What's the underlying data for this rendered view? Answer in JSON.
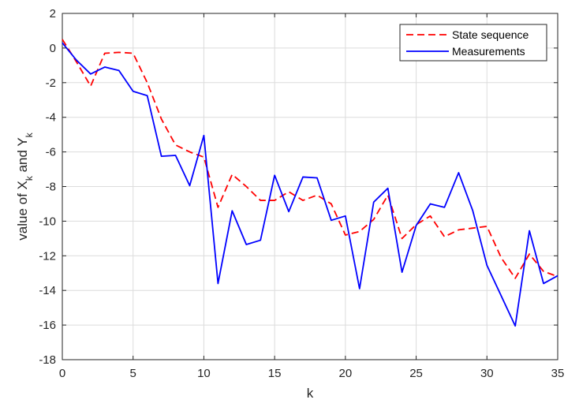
{
  "chart_data": {
    "type": "line",
    "title": "",
    "xlabel": "k",
    "ylabel": {
      "parts": [
        {
          "text": "value  of  X"
        },
        {
          "text": "k",
          "sub": true
        },
        {
          "text": "  and  Y"
        },
        {
          "text": "k",
          "sub": true
        }
      ]
    },
    "xlim": [
      0,
      35
    ],
    "ylim": [
      -18,
      2
    ],
    "xticks": [
      0,
      5,
      10,
      15,
      20,
      25,
      30,
      35
    ],
    "yticks": [
      2,
      0,
      -2,
      -4,
      -6,
      -8,
      -10,
      -12,
      -14,
      -16,
      -18
    ],
    "grid": true,
    "legend_position": "top-right",
    "x": [
      0,
      1,
      2,
      3,
      4,
      5,
      6,
      7,
      8,
      9,
      10,
      11,
      12,
      13,
      14,
      15,
      16,
      17,
      18,
      19,
      20,
      21,
      22,
      23,
      24,
      25,
      26,
      27,
      28,
      29,
      30,
      31,
      32,
      33,
      34,
      35
    ],
    "series": [
      {
        "name": "State sequence",
        "color": "#ff0000",
        "style": "dashed",
        "values": [
          0.5,
          -0.8,
          -2.2,
          -0.3,
          -0.25,
          -0.3,
          -2.0,
          -4.1,
          -5.6,
          -6.0,
          -6.3,
          -9.2,
          -7.3,
          -8.0,
          -8.8,
          -8.8,
          -8.3,
          -8.8,
          -8.5,
          -9.0,
          -10.8,
          -10.6,
          -9.9,
          -8.5,
          -11.0,
          -10.2,
          -9.7,
          -10.9,
          -10.5,
          -10.4,
          -10.3,
          -12.1,
          -13.3,
          -11.9,
          -12.9,
          -13.2
        ]
      },
      {
        "name": "Measurements",
        "color": "#0000ff",
        "style": "solid",
        "values": [
          0.3,
          -0.7,
          -1.5,
          -1.1,
          -1.3,
          -2.5,
          -2.75,
          -6.25,
          -6.2,
          -7.95,
          -5.05,
          -13.6,
          -9.4,
          -11.35,
          -11.1,
          -7.35,
          -9.45,
          -7.45,
          -7.5,
          -9.95,
          -9.7,
          -13.9,
          -8.9,
          -8.1,
          -12.95,
          -10.25,
          -9.0,
          -9.2,
          -7.2,
          -9.4,
          -12.55,
          -14.3,
          -16.05,
          -10.55,
          -13.6,
          -13.15
        ]
      }
    ]
  }
}
